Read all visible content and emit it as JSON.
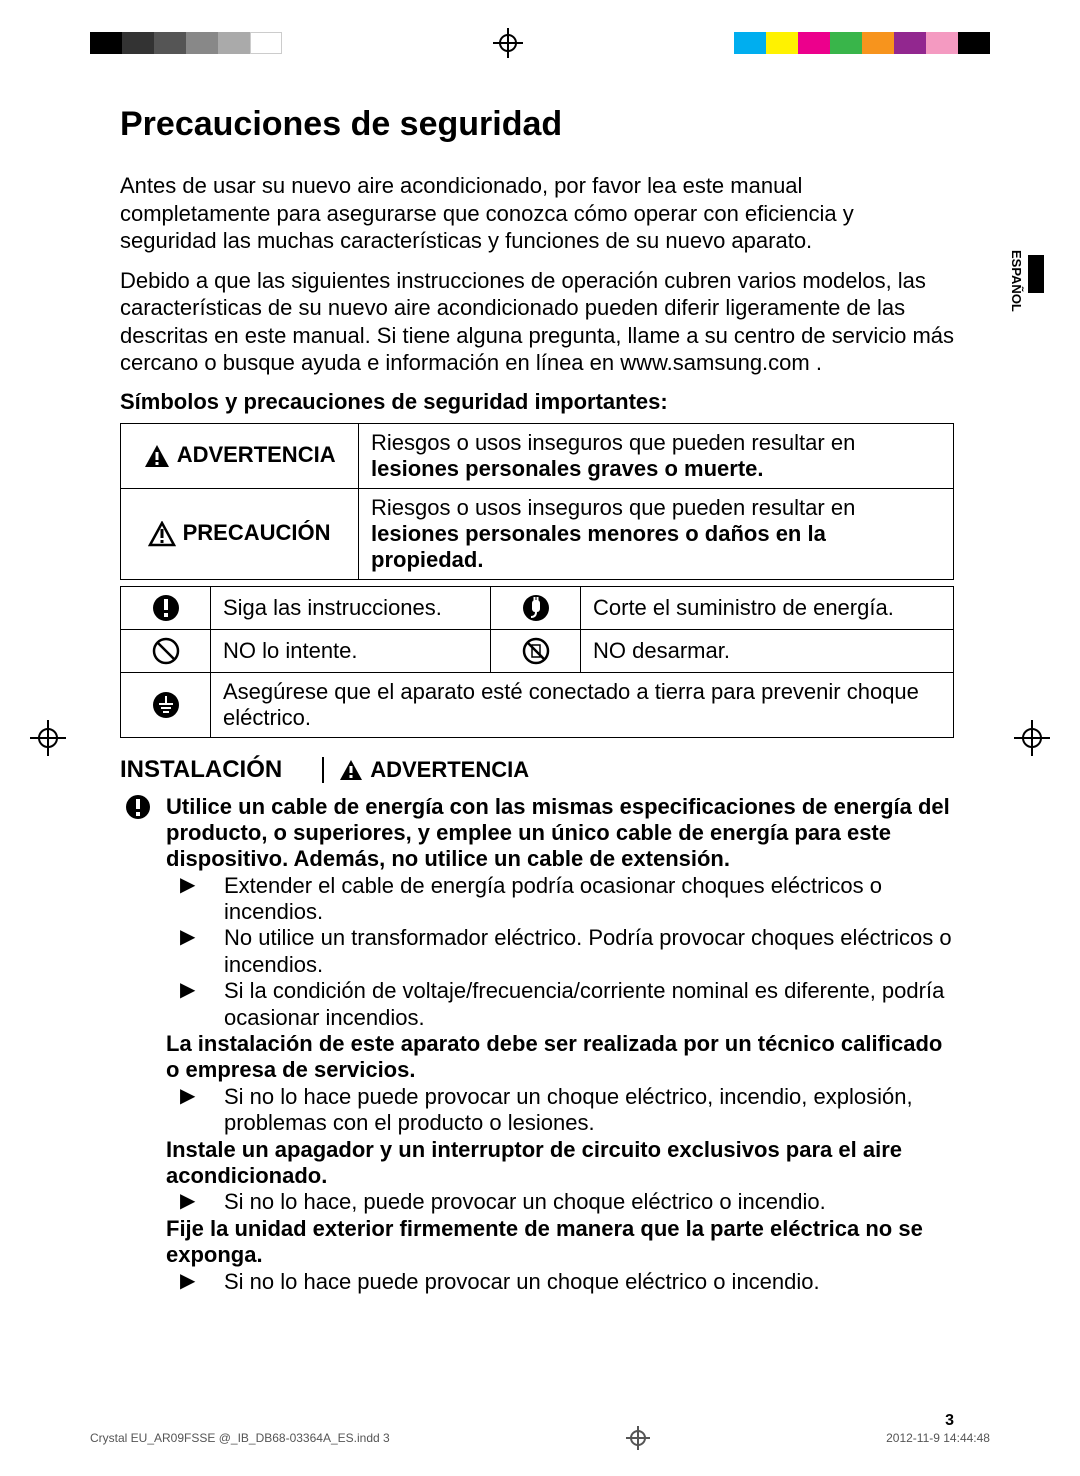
{
  "print_marks": {
    "left_swatches": [
      "#000000",
      "#333333",
      "#555555",
      "#888888",
      "#aaaaaa",
      "#ffffff"
    ],
    "right_swatches": [
      "#00aeef",
      "#fff200",
      "#ec008c",
      "#39b54a",
      "#f7941d",
      "#92278f",
      "#f49ac1",
      "#000000"
    ]
  },
  "lang_tab": "ESPAÑOL",
  "title": "Precauciones de seguridad",
  "intro1": "Antes de usar su nuevo aire acondicionado, por favor lea este manual completamente para asegurarse que conozca cómo operar con eficiencia y seguridad las muchas características y funciones de su nuevo aparato.",
  "intro2": "Debido a que las siguientes instrucciones de operación cubren varios modelos, las características de su nuevo aire acondicionado pueden diferir ligeramente de las descritas en este manual. Si tiene alguna pregunta, llame a su centro de servicio más cercano o busque ayuda e información en línea en www.samsung.com .",
  "subhead": "Símbolos y precauciones de seguridad importantes:",
  "table1": {
    "advertencia_label": "ADVERTENCIA",
    "advertencia_text_a": "Riesgos o usos inseguros que pueden resultar en ",
    "advertencia_text_b": "lesiones personales graves o muerte.",
    "precaucion_label": "PRECAUCIÓN",
    "precaucion_text_a": "Riesgos o usos inseguros que pueden resultar en ",
    "precaucion_text_b": "lesiones personales menores o daños en la propiedad."
  },
  "table2": {
    "r1c1": "Siga las instrucciones.",
    "r1c2": "Corte el suministro de energía.",
    "r2c1": "NO lo intente.",
    "r2c2": "NO desarmar.",
    "r3": "Asegúrese que el aparato esté conectado a tierra para prevenir choque eléctrico."
  },
  "section": {
    "title": "INSTALACIÓN",
    "warn_label": "ADVERTENCIA"
  },
  "warnings": {
    "w1_bold": "Utilice un cable de energía con las mismas especificaciones de energía del producto, o superiores, y emplee un único cable de energía para este dispositivo. Además, no utilice un cable de extensión.",
    "w1_b1": "Extender el cable de energía podría ocasionar choques eléctricos o incendios.",
    "w1_b2": "No utilice un transformador eléctrico. Podría provocar choques eléctricos o incendios.",
    "w1_b3": "Si la condición de voltaje/frecuencia/corriente nominal es diferente, podría ocasionar incendios.",
    "w2_bold": "La instalación de este aparato debe ser realizada por un técnico calificado o empresa de servicios.",
    "w2_b1": "Si no lo hace puede provocar un choque eléctrico, incendio, explosión, problemas con el producto o lesiones.",
    "w3_bold": "Instale un apagador y un interruptor de circuito exclusivos para el aire acondicionado.",
    "w3_b1": "Si no lo hace, puede provocar un choque eléctrico o incendio.",
    "w4_bold": "Fije la unidad exterior firmemente de manera que la parte eléctrica no se exponga.",
    "w4_b1": "Si no lo hace puede provocar un choque eléctrico o incendio."
  },
  "page_number": "3",
  "footer": {
    "left": "Crystal EU_AR09FSSE @_IB_DB68-03364A_ES.indd   3",
    "right": "2012-11-9   14:44:48"
  }
}
